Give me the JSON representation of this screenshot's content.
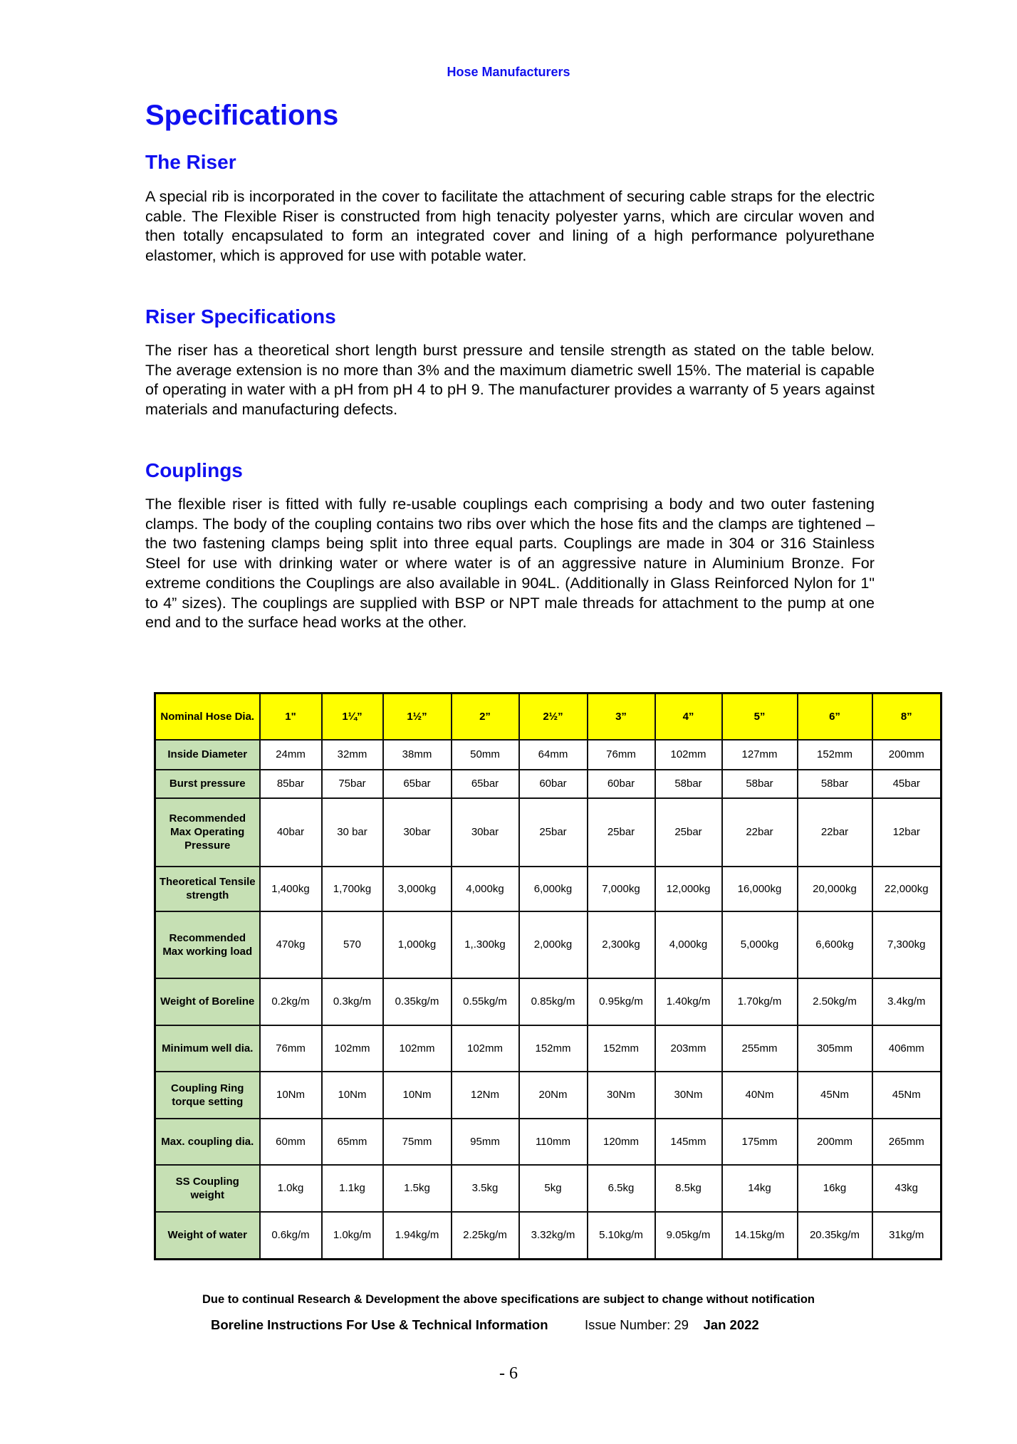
{
  "running_head": "Hose Manufacturers",
  "title": "Specifications",
  "sections": [
    {
      "heading": "The Riser",
      "text": "A special rib is incorporated in the cover to facilitate the attachment of securing cable straps for the electric cable.  The Flexible Riser is constructed from high tenacity polyester yarns, which are circular woven and then totally encapsulated to form an integrated cover and lining of a high performance polyurethane elastomer, which is approved for use with potable water."
    },
    {
      "heading": "Riser Specifications",
      "text": "The riser has a theoretical short length burst pressure and tensile strength as stated on the table below.  The average extension is no more than 3% and the maximum diametric swell 15%.  The material is capable of operating in water with a pH from pH 4 to pH 9. The manufacturer provides a warranty of 5 years against materials and manufacturing defects."
    },
    {
      "heading": "Couplings",
      "text": "The flexible riser is fitted with fully re-usable couplings each comprising a body and two outer fastening clamps. The body of the coupling contains two ribs over which the hose fits and the clamps are tightened – the two fastening clamps being split into three equal parts.  Couplings are made in 304 or 316 Stainless Steel for use with drinking water or where water is of an aggressive nature in Aluminium Bronze. For extreme conditions the Couplings are also available in 904L. (Additionally in Glass Reinforced Nylon for 1\" to 4” sizes).  The couplings are supplied with BSP or NPT male threads for attachment to the pump at one end and to the surface head works at the other."
    }
  ],
  "table": {
    "header": [
      "Nominal Hose Dia.",
      "1\"",
      "1¼”",
      "1½”",
      "2”",
      "2½”",
      "3”",
      "4”",
      "5”",
      "6”",
      "8”"
    ],
    "rows": [
      {
        "label": "Inside Diameter",
        "values": [
          "24mm",
          "32mm",
          "38mm",
          "50mm",
          "64mm",
          "76mm",
          "102mm",
          "127mm",
          "152mm",
          "200mm"
        ]
      },
      {
        "label": "Burst pressure",
        "values": [
          "85bar",
          "75bar",
          "65bar",
          "65bar",
          "60bar",
          "60bar",
          "58bar",
          "58bar",
          "58bar",
          "45bar"
        ]
      },
      {
        "label": "Recommended Max Operating Pressure",
        "values": [
          "40bar",
          "30 bar",
          "30bar",
          "30bar",
          "25bar",
          "25bar",
          "25bar",
          "22bar",
          "22bar",
          "12bar"
        ]
      },
      {
        "label": "Theoretical Tensile strength",
        "values": [
          "1,400kg",
          "1,700kg",
          "3,000kg",
          "4,000kg",
          "6,000kg",
          "7,000kg",
          "12,000kg",
          "16,000kg",
          "20,000kg",
          "22,000kg"
        ]
      },
      {
        "label": "Recommended Max working load",
        "values": [
          "470kg",
          "570",
          "1,000kg",
          "1,.300kg",
          "2,000kg",
          "2,300kg",
          "4,000kg",
          "5,000kg",
          "6,600kg",
          "7,300kg"
        ]
      },
      {
        "label": "Weight of Boreline",
        "values": [
          "0.2kg/m",
          "0.3kg/m",
          "0.35kg/m",
          "0.55kg/m",
          "0.85kg/m",
          "0.95kg/m",
          "1.40kg/m",
          "1.70kg/m",
          "2.50kg/m",
          "3.4kg/m"
        ]
      },
      {
        "label": "Minimum well dia.",
        "values": [
          "76mm",
          "102mm",
          "102mm",
          "102mm",
          "152mm",
          "152mm",
          "203mm",
          "255mm",
          "305mm",
          "406mm"
        ]
      },
      {
        "label": "Coupling Ring torque setting",
        "values": [
          "10Nm",
          "10Nm",
          "10Nm",
          "12Nm",
          "20Nm",
          "30Nm",
          "30Nm",
          "40Nm",
          "45Nm",
          "45Nm"
        ]
      },
      {
        "label": "Max. coupling dia.",
        "values": [
          "60mm",
          "65mm",
          "75mm",
          "95mm",
          "110mm",
          "120mm",
          "145mm",
          "175mm",
          "200mm",
          "265mm"
        ]
      },
      {
        "label": "SS Coupling weight",
        "values": [
          "1.0kg",
          "1.1kg",
          "1.5kg",
          "3.5kg",
          "5kg",
          "6.5kg",
          "8.5kg",
          "14kg",
          "16kg",
          "43kg"
        ]
      },
      {
        "label": "Weight of water",
        "values": [
          "0.6kg/m",
          "1.0kg/m",
          "1.94kg/m",
          "2.25kg/m",
          "3.32kg/m",
          "5.10kg/m",
          "9.05kg/m",
          "14.15kg/m",
          "20.35kg/m",
          "31kg/m"
        ]
      }
    ]
  },
  "disclaimer": "Due to continual Research & Development the above specifications are subject to change without notification",
  "footer": {
    "doc_title": "Boreline Instructions For Use & Technical Information",
    "issue": "Issue Number: 29",
    "date": "Jan 2022"
  },
  "page_number": "- 6",
  "colors": {
    "heading": "#1010f0",
    "header_fill": "#ffff00",
    "row_label_fill": "#c6e0b4"
  }
}
